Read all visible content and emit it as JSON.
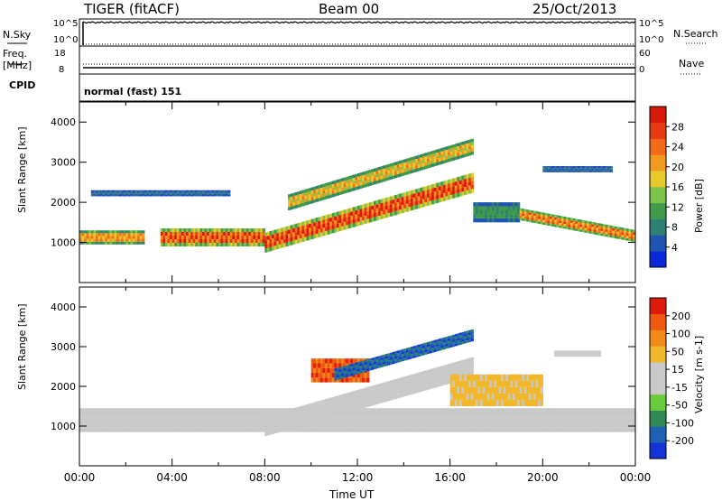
{
  "header": {
    "radar": "TIGER (fitACF)",
    "beam": "Beam 00",
    "date": "25/Oct/2013"
  },
  "top_strip": {
    "left_labels": [
      "N.Sky",
      "Freq.",
      "[MHz]",
      "CPID"
    ],
    "sky_ticks": [
      "10^5",
      "10^0"
    ],
    "freq_ticks": [
      "18",
      "8"
    ],
    "search_ticks": [
      "10^5",
      "10^0"
    ],
    "nave_ticks": [
      "60",
      "0"
    ],
    "right_labels": [
      "N.Search",
      "Nave"
    ],
    "cpid_text": "normal (fast) 151"
  },
  "colors": {
    "power_scale": [
      "#0a28d8",
      "#1f55b0",
      "#2e7f74",
      "#3f9a4a",
      "#7cc44a",
      "#e8c92a",
      "#f09a1f",
      "#f36a1a",
      "#e83a12",
      "#d81a0a"
    ],
    "velocity_scale": [
      "#1433d6",
      "#1e62b5",
      "#2f8a57",
      "#69cc3a",
      "#c9c9c9",
      "#c9c9c9",
      "#f2b82a",
      "#f28a1a",
      "#ee5a12",
      "#e01a0a"
    ]
  },
  "chart_data": [
    {
      "type": "heatmap",
      "name_panel": "power",
      "ylabel": "Slant Range [km]",
      "yticks": [
        "4000",
        "3000",
        "2000",
        "1000"
      ],
      "ylim": [
        0,
        4500
      ],
      "xlim_hours": [
        0,
        24
      ],
      "colorbar_label": "Power [dB]",
      "colorbar_ticks": [
        "28",
        "24",
        "20",
        "16",
        "12",
        "8",
        "4"
      ],
      "colorbar_range": [
        0,
        30
      ],
      "features": [
        {
          "t0": 0.0,
          "t1": 2.8,
          "r0": 950,
          "r1": 1300,
          "value": 20
        },
        {
          "t0": 3.5,
          "t1": 8.0,
          "r0": 900,
          "r1": 1350,
          "value": 24
        },
        {
          "t0": 8.0,
          "t1": 17.0,
          "r_start": 1000,
          "r_end": 2500,
          "width": 500,
          "value": 26
        },
        {
          "t0": 9.0,
          "t1": 17.0,
          "r_start": 2000,
          "r_end": 3400,
          "width": 400,
          "value": 18
        },
        {
          "t0": 17.0,
          "t1": 19.0,
          "r0": 1500,
          "r1": 2000,
          "value": 10
        },
        {
          "t0": 19.0,
          "t1": 24.0,
          "r_start": 1700,
          "r_end": 1150,
          "width": 300,
          "value": 22
        },
        {
          "t0": 20.0,
          "t1": 23.0,
          "r0": 2750,
          "r1": 2900,
          "value": 6
        },
        {
          "t0": 0.5,
          "t1": 6.5,
          "r0": 2150,
          "r1": 2300,
          "value": 6
        }
      ]
    },
    {
      "type": "heatmap",
      "name_panel": "velocity",
      "ylabel": "Slant Range [km]",
      "yticks": [
        "4000",
        "3000",
        "2000",
        "1000"
      ],
      "ylim": [
        0,
        4500
      ],
      "xlim_hours": [
        0,
        24
      ],
      "colorbar_label": "Velocity [m s-1]",
      "colorbar_ticks": [
        "200",
        "100",
        "50",
        "15",
        "-15",
        "-50",
        "-100",
        "-200"
      ],
      "colorbar_range": [
        -250,
        250
      ],
      "features": [
        {
          "t0": 0.0,
          "t1": 24.0,
          "r0": 850,
          "r1": 1450,
          "value": 0
        },
        {
          "t0": 8.0,
          "t1": 17.0,
          "r_start": 1000,
          "r_end": 2500,
          "width": 500,
          "value": 0
        },
        {
          "t0": 10.0,
          "t1": 12.5,
          "r0": 2100,
          "r1": 2700,
          "value": 180
        },
        {
          "t0": 11.0,
          "t1": 17.0,
          "r_start": 2300,
          "r_end": 3300,
          "width": 300,
          "value": -180
        },
        {
          "t0": 16.0,
          "t1": 20.0,
          "r0": 1500,
          "r1": 2300,
          "value": 60
        },
        {
          "t0": 20.5,
          "t1": 22.5,
          "r0": 2750,
          "r1": 2900,
          "value": 40
        }
      ]
    }
  ],
  "xaxis": {
    "ticks": [
      "00:00",
      "04:00",
      "08:00",
      "12:00",
      "16:00",
      "20:00",
      "00:00"
    ],
    "label": "Time UT"
  }
}
